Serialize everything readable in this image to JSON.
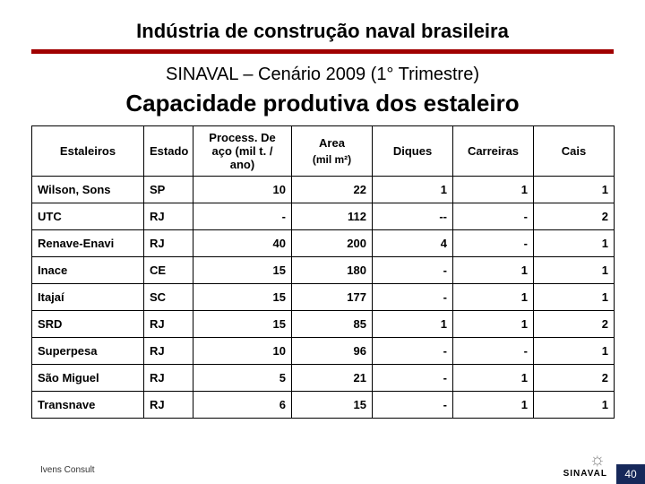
{
  "title": "Indústria de construção naval brasileira",
  "subtitle1": "SINAVAL – Cenário 2009 (1° Trimestre)",
  "subtitle2": "Capacidade produtiva dos estaleiro",
  "table": {
    "columns": [
      {
        "label": "Estaleiros",
        "sub": ""
      },
      {
        "label": "Estado",
        "sub": ""
      },
      {
        "label": "Process. De aço (mil t. / ano)",
        "sub": ""
      },
      {
        "label": "Area",
        "sub": "(mil m²)"
      },
      {
        "label": "Diques",
        "sub": ""
      },
      {
        "label": "Carreiras",
        "sub": ""
      },
      {
        "label": "Cais",
        "sub": ""
      }
    ],
    "rows": [
      [
        "Wilson, Sons",
        "SP",
        "10",
        "22",
        "1",
        "1",
        "1"
      ],
      [
        "UTC",
        "RJ",
        "-",
        "112",
        "--",
        "-",
        "2"
      ],
      [
        "Renave-Enavi",
        "RJ",
        "40",
        "200",
        "4",
        "-",
        "1"
      ],
      [
        "Inace",
        "CE",
        "15",
        "180",
        "-",
        "1",
        "1"
      ],
      [
        "Itajaí",
        "SC",
        "15",
        "177",
        "-",
        "1",
        "1"
      ],
      [
        "SRD",
        "RJ",
        "15",
        "85",
        "1",
        "1",
        "2"
      ],
      [
        "Superpesa",
        "RJ",
        "10",
        "96",
        "-",
        "-",
        "1"
      ],
      [
        "São Miguel",
        "RJ",
        "5",
        "21",
        "-",
        "1",
        "2"
      ],
      [
        "Transnave",
        "RJ",
        "6",
        "15",
        "-",
        "1",
        "1"
      ]
    ]
  },
  "footer": {
    "left": "Ivens Consult",
    "brand": "SINAVAL",
    "page": "40"
  },
  "colors": {
    "accent_bar": "#a00000",
    "page_badge_bg": "#16285a"
  }
}
